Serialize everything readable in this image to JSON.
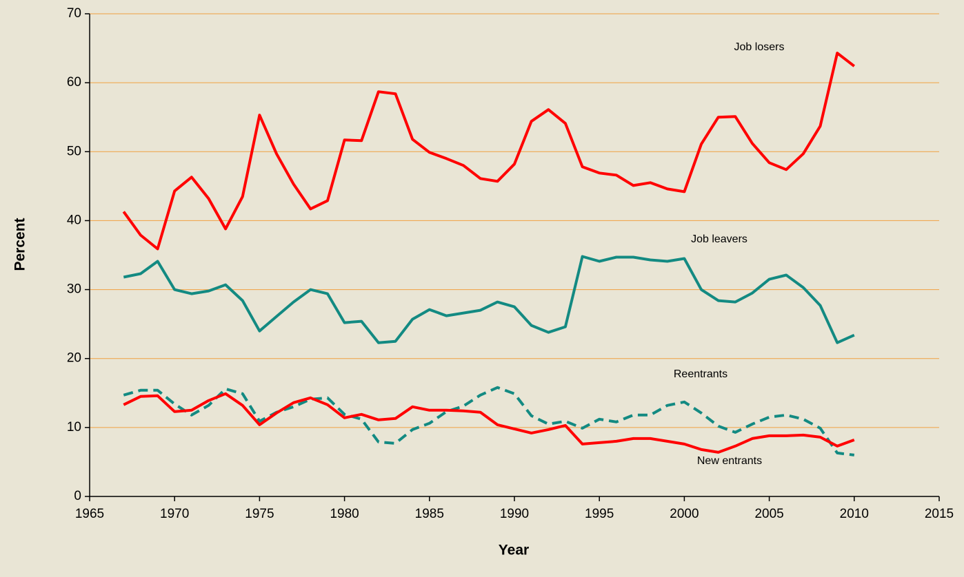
{
  "chart_data": {
    "type": "line",
    "x_label": "Year",
    "y_label": "Percent",
    "x": [
      1967,
      1968,
      1969,
      1970,
      1971,
      1972,
      1973,
      1974,
      1975,
      1976,
      1977,
      1978,
      1979,
      1980,
      1981,
      1982,
      1983,
      1984,
      1985,
      1986,
      1987,
      1988,
      1989,
      1990,
      1991,
      1992,
      1993,
      1994,
      1995,
      1996,
      1997,
      1998,
      1999,
      2000,
      2001,
      2002,
      2003,
      2004,
      2005,
      2006,
      2007,
      2008,
      2009,
      2010
    ],
    "series": [
      {
        "name": "Job losers",
        "color": "#ff0000",
        "dashed": false,
        "values": [
          41.3,
          37.9,
          35.9,
          44.3,
          46.3,
          43.2,
          38.8,
          43.5,
          55.3,
          49.7,
          45.3,
          41.7,
          42.9,
          51.7,
          51.6,
          58.7,
          58.4,
          51.8,
          49.9,
          49.0,
          48.0,
          46.1,
          45.7,
          48.2,
          54.4,
          56.1,
          54.1,
          47.8,
          46.9,
          46.6,
          45.1,
          45.5,
          44.6,
          44.2,
          51.1,
          55.0,
          55.1,
          51.2,
          48.4,
          47.4,
          49.7,
          53.7,
          64.3,
          62.4
        ]
      },
      {
        "name": "Job leavers",
        "color": "#138a82",
        "dashed": false,
        "values": [
          31.8,
          32.3,
          34.1,
          30.0,
          29.4,
          29.8,
          30.7,
          28.4,
          24.0,
          26.1,
          28.2,
          30.0,
          29.4,
          25.2,
          25.4,
          22.3,
          22.5,
          25.7,
          27.1,
          26.2,
          26.6,
          27.0,
          28.2,
          27.5,
          24.8,
          23.8,
          24.6,
          34.8,
          34.1,
          34.7,
          34.7,
          34.3,
          34.1,
          34.5,
          30.0,
          28.4,
          28.2,
          29.5,
          31.5,
          32.1,
          30.3,
          27.7,
          22.3,
          23.4
        ]
      },
      {
        "name": "Reentrants",
        "color": "#138a82",
        "dashed": true,
        "values": [
          14.7,
          15.4,
          15.4,
          13.4,
          11.8,
          13.2,
          15.6,
          14.9,
          10.9,
          12.2,
          13.0,
          14.1,
          14.3,
          11.9,
          11.2,
          7.9,
          7.7,
          9.7,
          10.6,
          12.3,
          13.1,
          14.7,
          15.8,
          14.9,
          11.7,
          10.5,
          10.9,
          9.9,
          11.2,
          10.8,
          11.8,
          11.8,
          13.2,
          13.7,
          12.1,
          10.2,
          9.3,
          10.5,
          11.5,
          11.8,
          11.2,
          9.9,
          6.3,
          6.0
        ]
      },
      {
        "name": "New entrants",
        "color": "#ff0000",
        "dashed": false,
        "values": [
          13.3,
          14.5,
          14.6,
          12.3,
          12.5,
          13.9,
          14.9,
          13.2,
          10.4,
          12.1,
          13.6,
          14.3,
          13.3,
          11.4,
          11.9,
          11.1,
          11.3,
          13.0,
          12.5,
          12.5,
          12.4,
          12.2,
          10.4,
          9.8,
          9.2,
          9.7,
          10.3,
          7.6,
          7.8,
          8.0,
          8.4,
          8.4,
          8.0,
          7.6,
          6.8,
          6.4,
          7.3,
          8.4,
          8.8,
          8.8,
          8.9,
          8.6,
          7.3,
          8.2
        ]
      }
    ],
    "xlim": [
      1965,
      2015
    ],
    "xticks": [
      1965,
      1970,
      1975,
      1980,
      1985,
      1990,
      1995,
      2000,
      2005,
      2010,
      2015
    ],
    "ylim": [
      0,
      70
    ],
    "yticks": [
      0,
      10,
      20,
      30,
      40,
      50,
      60,
      70
    ],
    "grid": true,
    "grid_color": "#f0a040"
  }
}
